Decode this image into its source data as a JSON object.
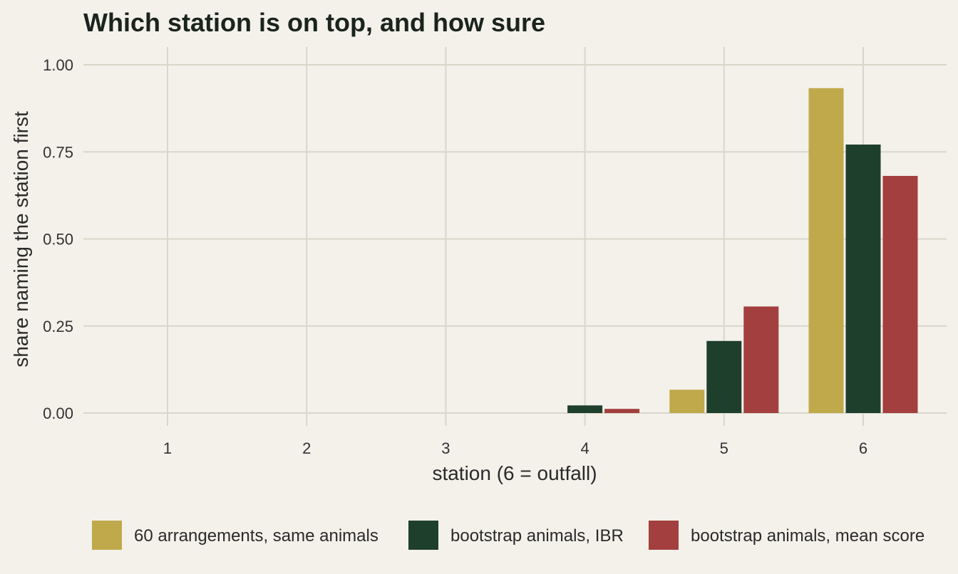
{
  "chart_data": {
    "type": "bar",
    "title": "Which station is on top, and how sure",
    "xlabel": "station (6 = outfall)",
    "ylabel": "share naming the station first",
    "categories": [
      "1",
      "2",
      "3",
      "4",
      "5",
      "6"
    ],
    "ylim": [
      0,
      1.05
    ],
    "yticks": [
      "0.00",
      "0.25",
      "0.50",
      "0.75",
      "1.00"
    ],
    "ytick_values": [
      0,
      0.25,
      0.5,
      0.75,
      1.0
    ],
    "grid": true,
    "legend_position": "bottom",
    "series": [
      {
        "name": "60 arrangements, same animals",
        "color": "#c0a94b",
        "values": [
          0,
          0,
          0,
          0,
          0.067,
          0.933
        ]
      },
      {
        "name": "bootstrap animals, IBR",
        "color": "#1f3f2d",
        "values": [
          0,
          0,
          0,
          0.022,
          0.207,
          0.771
        ]
      },
      {
        "name": "bootstrap animals, mean score",
        "color": "#a33f3e",
        "values": [
          0,
          0,
          0,
          0.012,
          0.306,
          0.681
        ]
      }
    ]
  }
}
